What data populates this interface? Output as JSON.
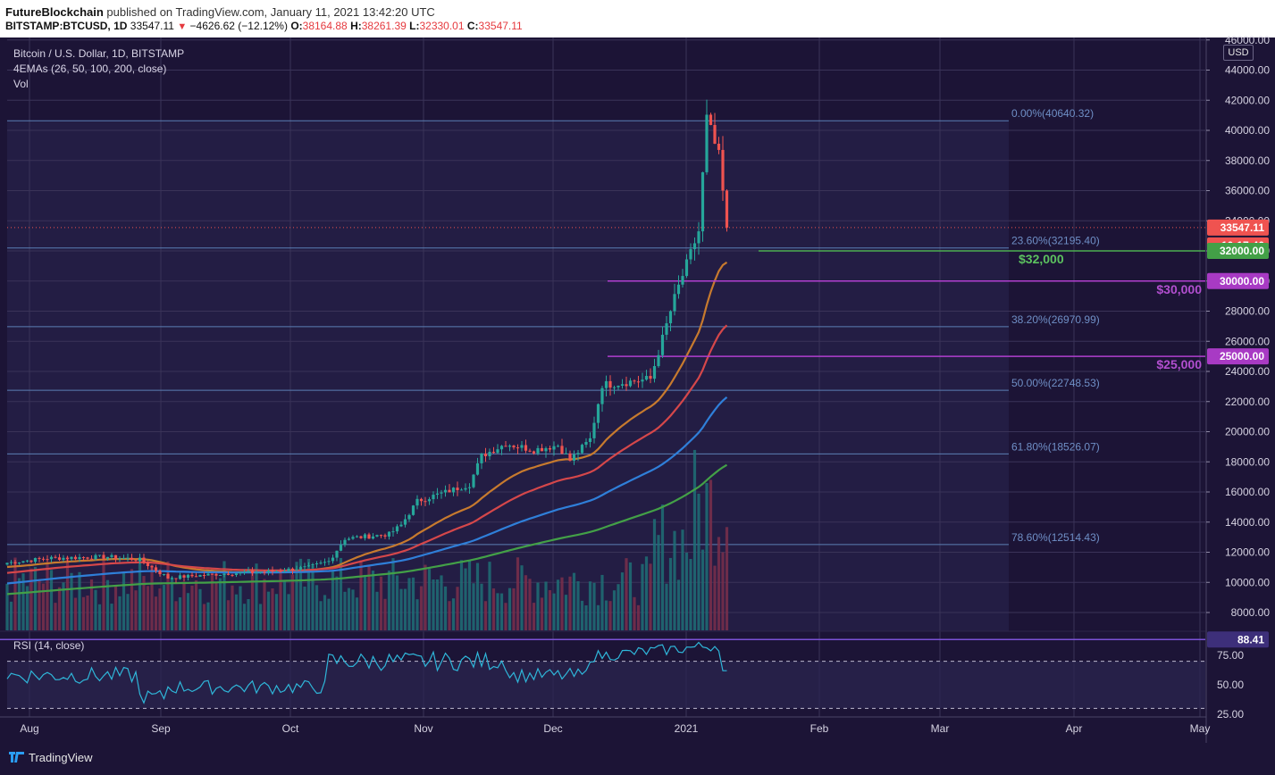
{
  "header": {
    "author": "FutureBlockchain",
    "published_text": "published on TradingView.com, January 11, 2021 13:42:20 UTC",
    "symbol": "BITSTAMP:BTCUSD, 1D",
    "last": "33547.11",
    "change": "−4626.62 (−12.12%)",
    "o_label": "O:",
    "o_value": "38164.88",
    "h_label": "H:",
    "h_value": "38261.39",
    "l_label": "L:",
    "l_value": "32330.01",
    "c_label": "C:",
    "c_value": "33547.11"
  },
  "legend": {
    "line1": "Bitcoin / U.S. Dollar, 1D, BITSTAMP",
    "line2": "4EMAs (26, 50, 100, 200, close)",
    "line3": "Vol"
  },
  "currency": "USD",
  "footer": {
    "brand": "TradingView"
  },
  "colors": {
    "background": "#1c1436",
    "up": "#26a69a",
    "down": "#ef5350",
    "ema26": "#c77a2e",
    "ema50": "#d5474a",
    "ema100": "#2f7fd9",
    "ema200": "#43a047",
    "level_purple": "#b13fcf",
    "level_green": "#4caf50",
    "fib": "#5b7fb5",
    "rsi": "#2fb6d9"
  },
  "chart_data": {
    "type": "candlestick",
    "price_axis": {
      "ticks": [
        "8000.00",
        "10000.00",
        "12000.00",
        "14000.00",
        "16000.00",
        "18000.00",
        "20000.00",
        "22000.00",
        "24000.00",
        "26000.00",
        "28000.00",
        "30000.00",
        "32000.00",
        "34000.00",
        "36000.00",
        "38000.00",
        "40000.00",
        "42000.00",
        "44000.00",
        "46000.00"
      ]
    },
    "time_axis": {
      "labels": [
        "Aug",
        "Sep",
        "Oct",
        "Nov",
        "Dec",
        "2021",
        "Feb",
        "Mar",
        "Apr",
        "May"
      ]
    },
    "fib_levels": [
      {
        "label": "0.00%(40640.32)",
        "price": 40640.32
      },
      {
        "label": "23.60%(32195.40)",
        "price": 32195.4
      },
      {
        "label": "38.20%(26970.99)",
        "price": 26970.99
      },
      {
        "label": "50.00%(22748.53)",
        "price": 22748.53
      },
      {
        "label": "61.80%(18526.07)",
        "price": 18526.07
      },
      {
        "label": "78.60%(12514.43)",
        "price": 12514.43
      }
    ],
    "levels": [
      {
        "label": "$32,000",
        "price": 32000,
        "axis_label": "32000.00",
        "color": "#4caf50"
      },
      {
        "label": "$30,000",
        "price": 30000,
        "axis_label": "30000.00",
        "color": "#b13fcf"
      },
      {
        "label": "$25,000",
        "price": 25000,
        "axis_label": "25000.00",
        "color": "#b13fcf"
      }
    ],
    "last_price": {
      "value": "33547.11",
      "countdown": "10:17:40"
    },
    "series": [
      {
        "name": "EMA 26",
        "color": "#c77a2e"
      },
      {
        "name": "EMA 50",
        "color": "#d5474a"
      },
      {
        "name": "EMA 100",
        "color": "#2f7fd9"
      },
      {
        "name": "EMA 200",
        "color": "#43a047"
      }
    ],
    "rsi": {
      "label": "RSI (14, close)",
      "current": "88.41",
      "ticks": [
        "75.00",
        "50.00",
        "25.00"
      ],
      "bands": [
        70,
        30
      ]
    }
  }
}
